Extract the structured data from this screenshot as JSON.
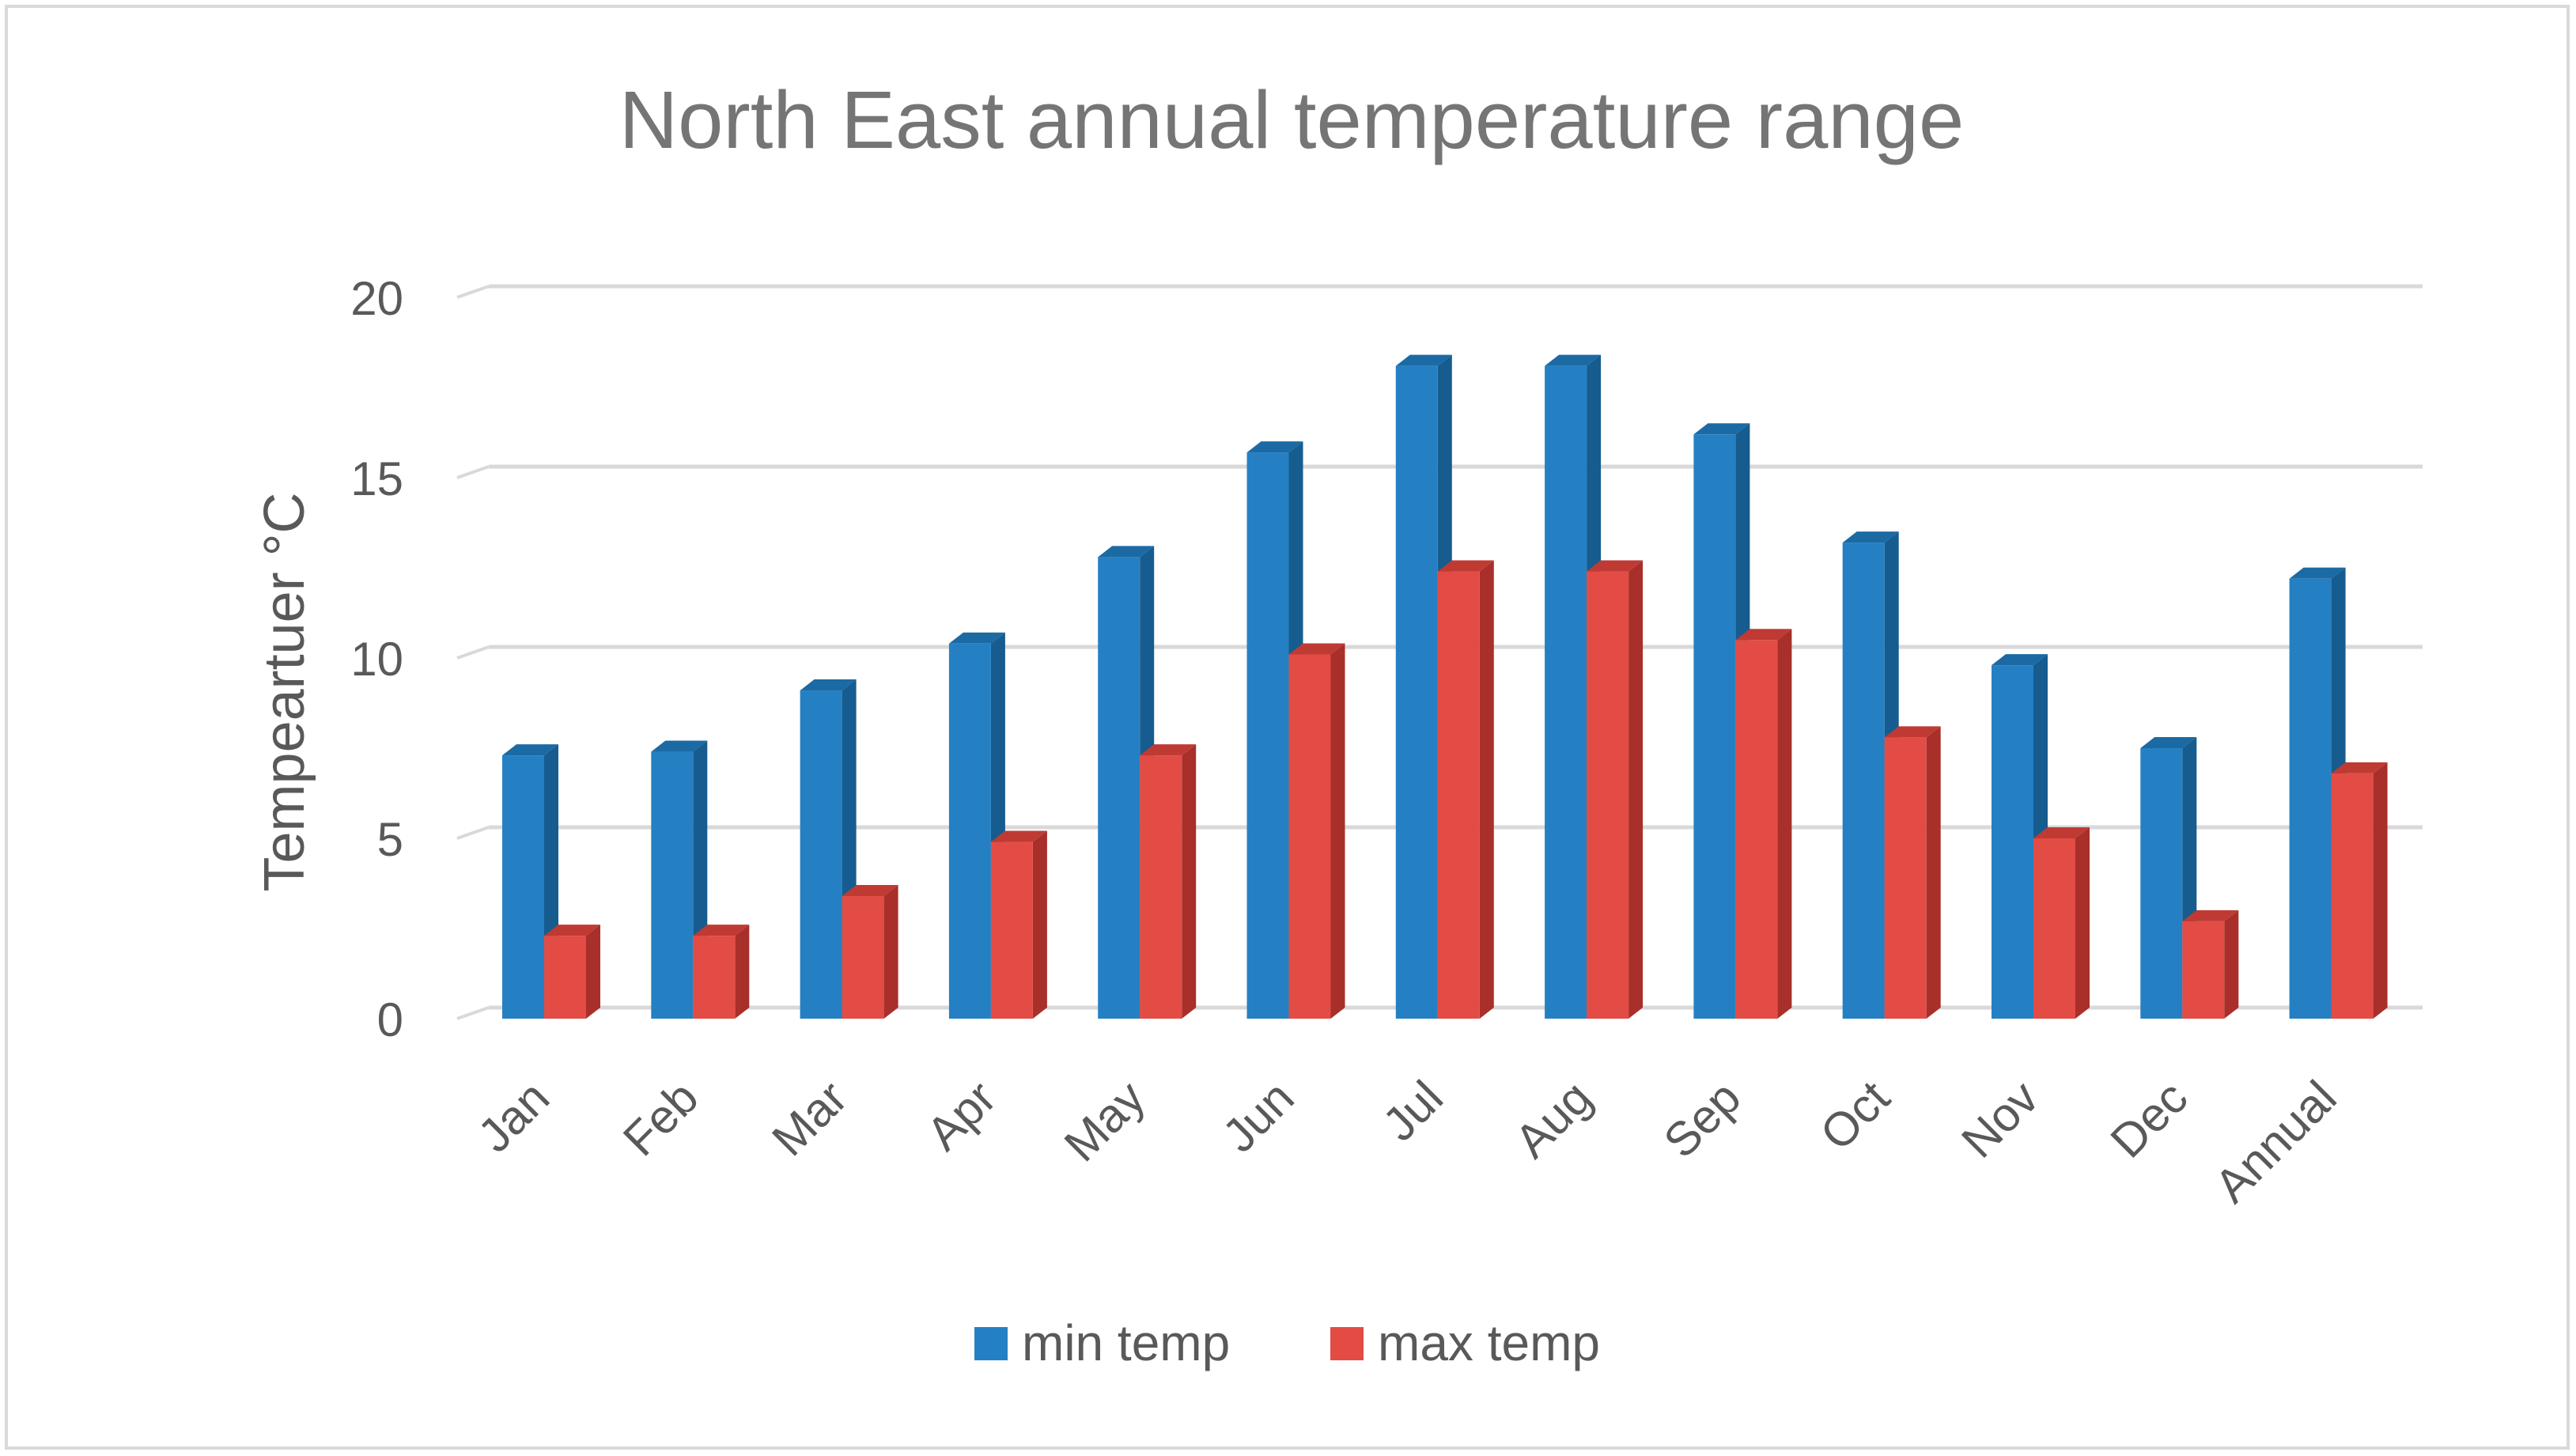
{
  "chart_data": {
    "type": "bar",
    "title": "North East annual temperature range",
    "xlabel": "",
    "ylabel": "Tempeartuer °C",
    "ylim": [
      0,
      20
    ],
    "yticks": [
      0,
      5,
      10,
      15,
      20
    ],
    "ytick_labels": [
      "0",
      "5",
      "10",
      "15",
      "20"
    ],
    "grid": true,
    "legend_position": "bottom",
    "categories": [
      "Jan",
      "Feb",
      "Mar",
      "Apr",
      "May",
      "Jun",
      "Jul",
      "Aug",
      "Sep",
      "Oct",
      "Nov",
      "Dec",
      "Annual"
    ],
    "series": [
      {
        "name": "min temp",
        "color": "#2580c3",
        "side_color": "#165c8f",
        "top_color": "#1b6aa4",
        "values": [
          7.3,
          7.4,
          9.1,
          10.4,
          12.8,
          15.7,
          18.1,
          18.1,
          16.2,
          13.2,
          9.8,
          7.5,
          12.2
        ]
      },
      {
        "name": "max temp",
        "color": "#e24c45",
        "side_color": "#a82f2a",
        "top_color": "#c03a34",
        "values": [
          2.3,
          2.3,
          3.4,
          4.9,
          7.3,
          10.1,
          12.4,
          12.4,
          10.5,
          7.8,
          5.0,
          2.7,
          6.8
        ]
      }
    ]
  }
}
